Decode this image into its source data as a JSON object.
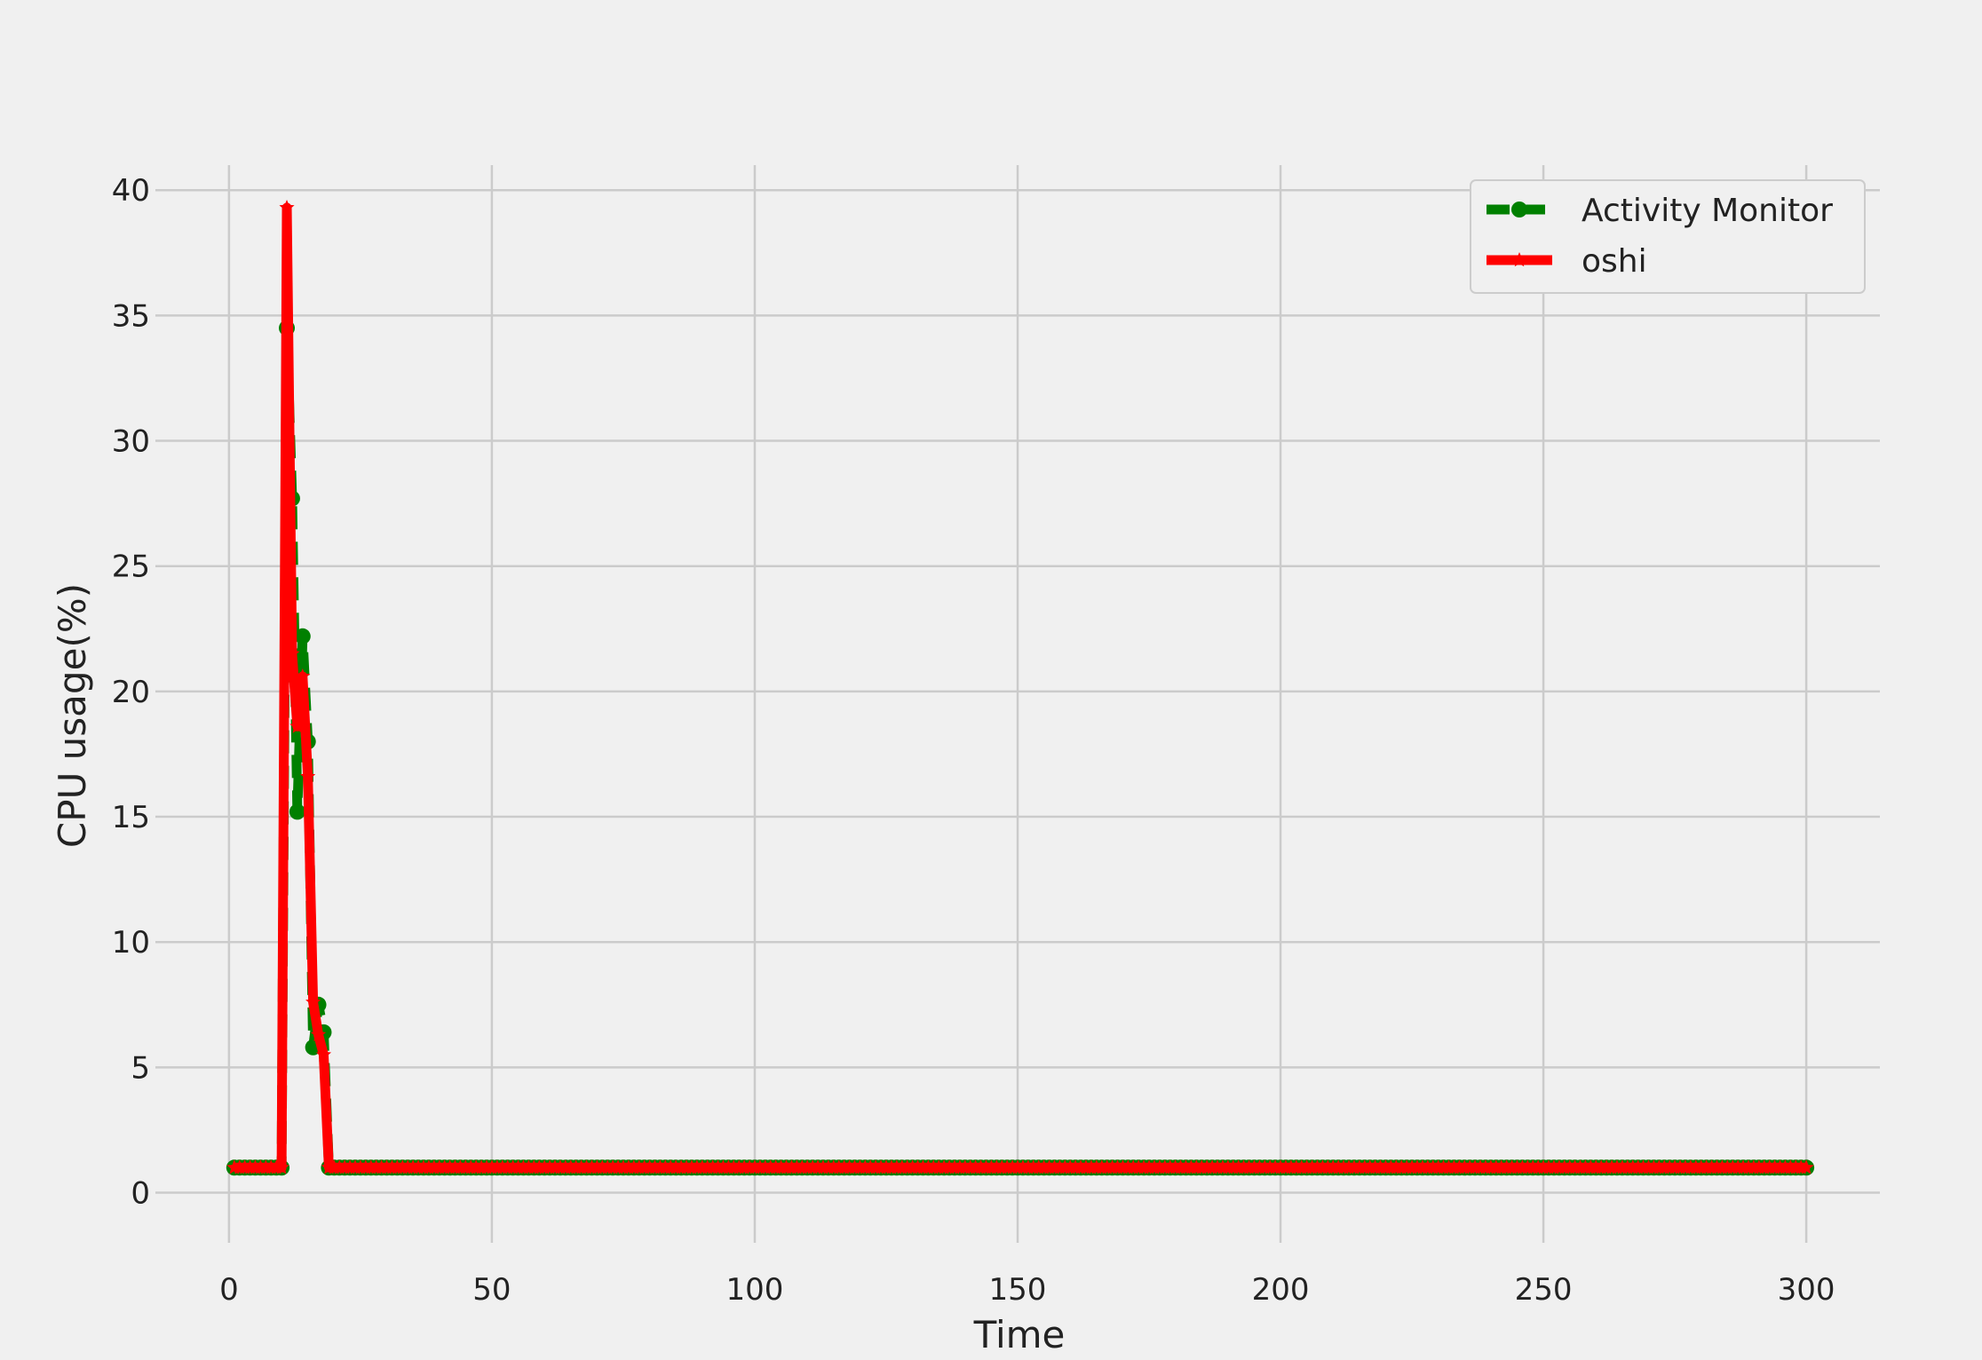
{
  "chart_data": {
    "type": "line",
    "title": "",
    "xlabel": "Time",
    "ylabel": "CPU usage(%)",
    "xlim": [
      -14,
      314
    ],
    "ylim": [
      -2,
      41
    ],
    "xticks": [
      0,
      50,
      100,
      150,
      200,
      250,
      300
    ],
    "yticks": [
      0,
      5,
      10,
      15,
      20,
      25,
      30,
      35,
      40
    ],
    "grid": true,
    "legend_position": "top-right",
    "x_start": 1,
    "x_end": 300,
    "baseline_value": 1.0,
    "series": [
      {
        "name": "Activity Monitor",
        "color": "#008000",
        "linestyle": "dashed",
        "marker": "circle",
        "points": [
          [
            10,
            1.0
          ],
          [
            11,
            34.5
          ],
          [
            12,
            27.7
          ],
          [
            13,
            15.2
          ],
          [
            14,
            22.2
          ],
          [
            15,
            18.0
          ],
          [
            16,
            5.8
          ],
          [
            17,
            7.5
          ],
          [
            18,
            6.4
          ],
          [
            19,
            1.0
          ]
        ]
      },
      {
        "name": "oshi",
        "color": "#ff0000",
        "linestyle": "solid",
        "marker": "star",
        "points": [
          [
            10,
            1.0
          ],
          [
            11,
            39.3
          ],
          [
            12,
            21.5
          ],
          [
            13,
            18.6
          ],
          [
            14,
            20.6
          ],
          [
            15,
            16.6
          ],
          [
            16,
            7.6
          ],
          [
            17,
            6.3
          ],
          [
            18,
            5.5
          ],
          [
            19,
            1.0
          ]
        ]
      }
    ]
  }
}
